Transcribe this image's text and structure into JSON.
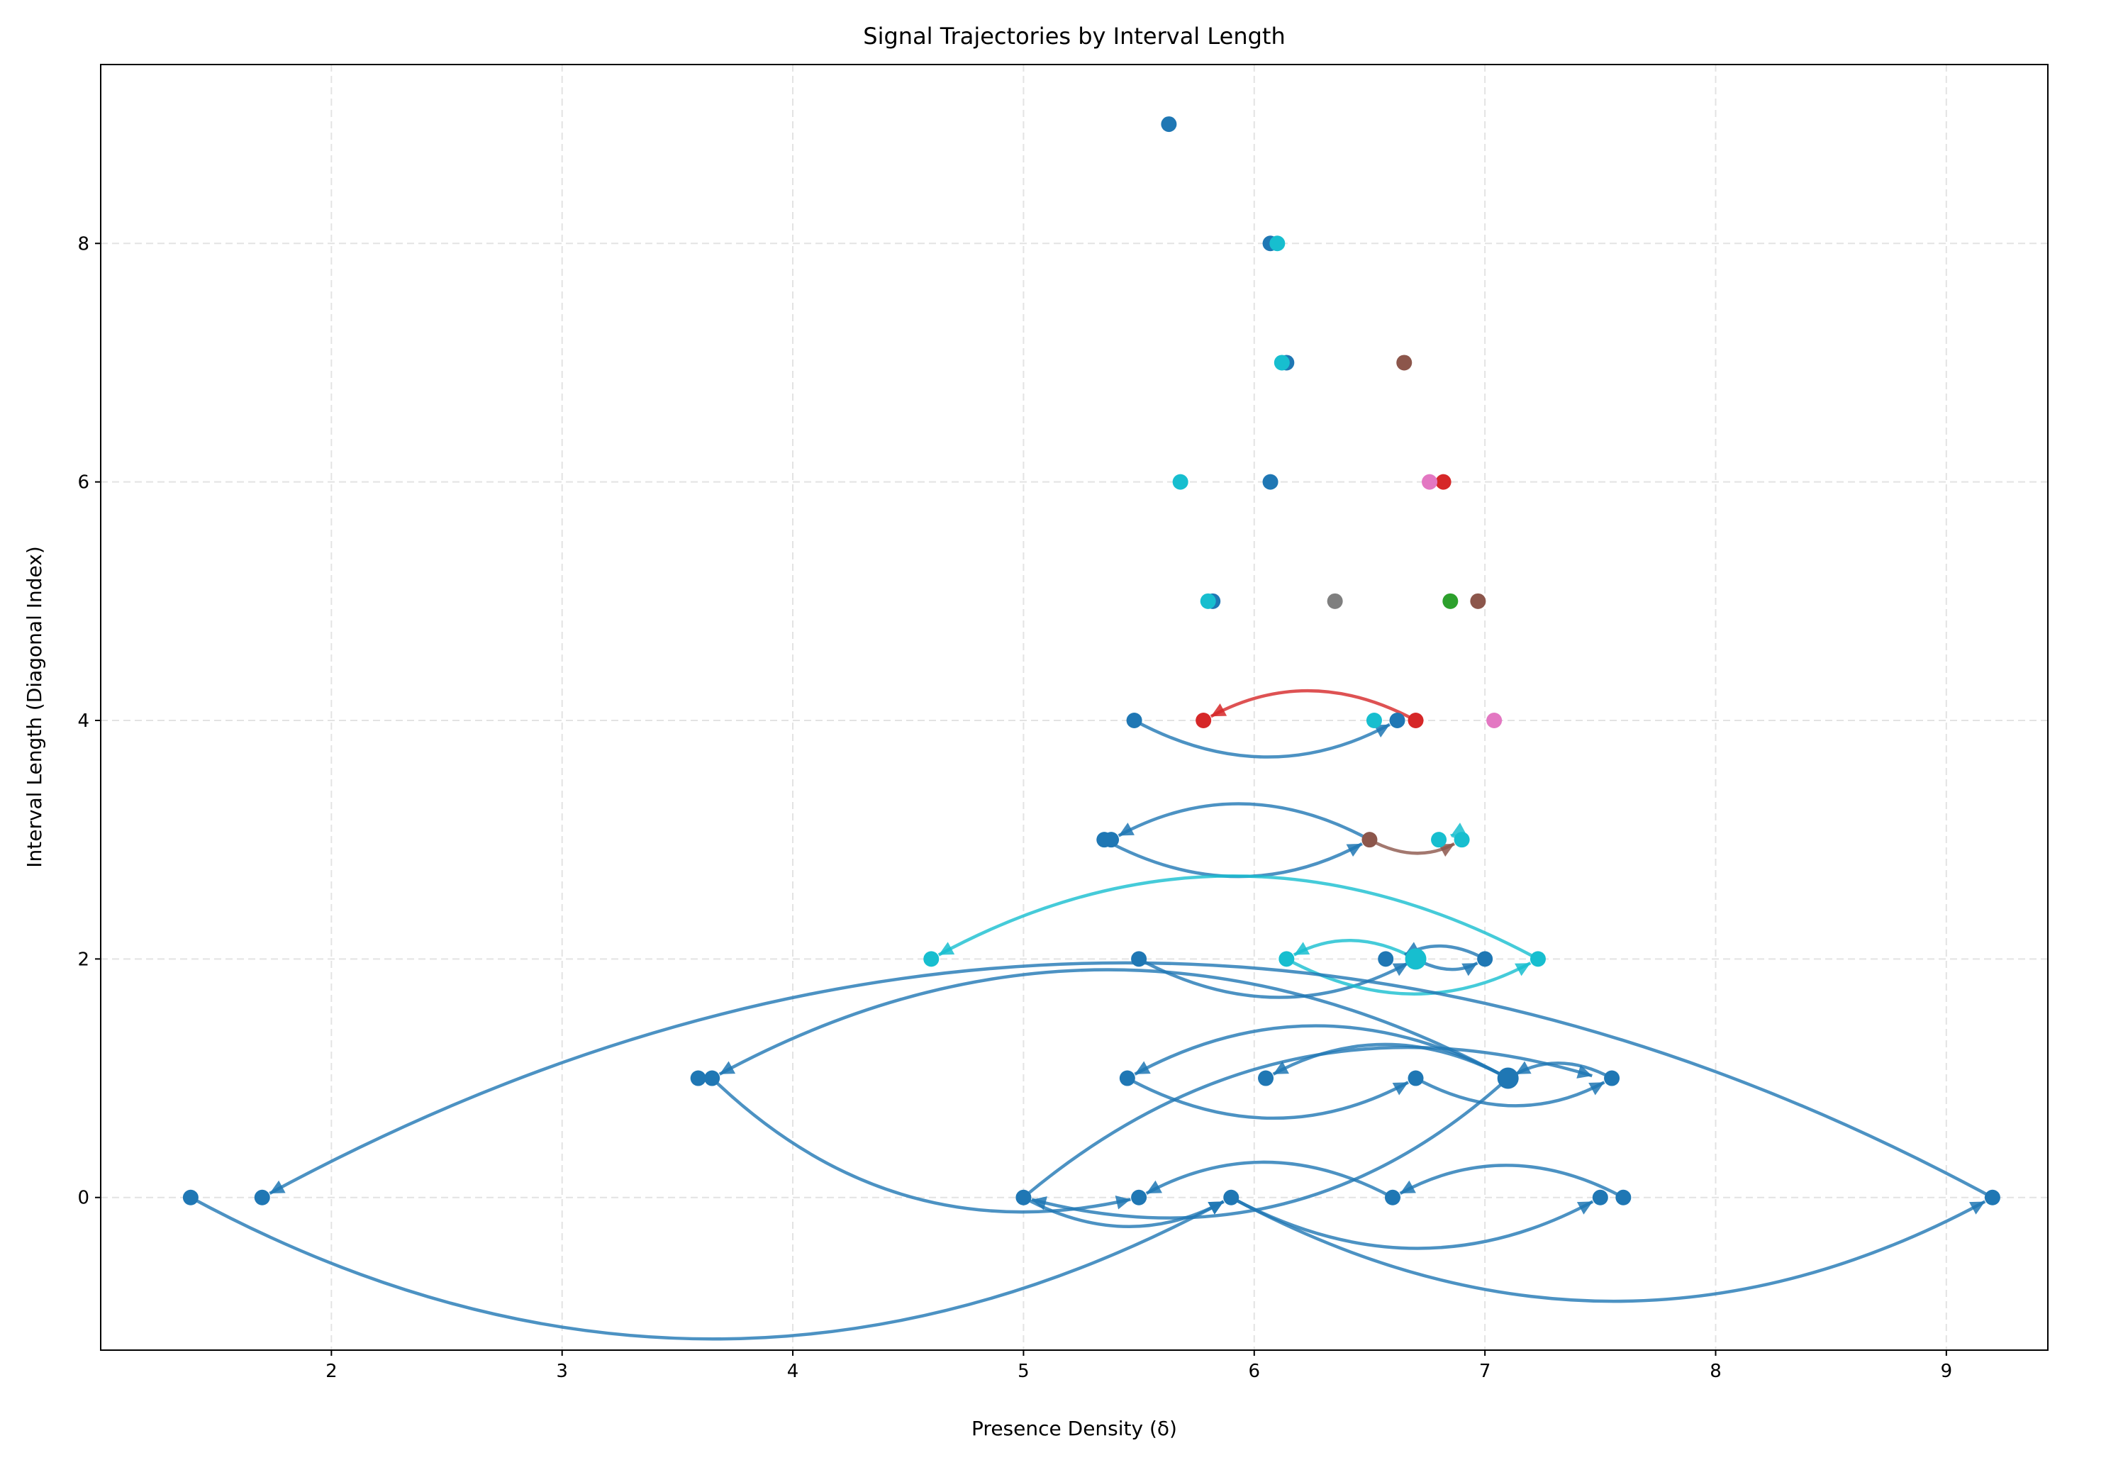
{
  "chart_data": {
    "type": "scatter",
    "title": "Signal Trajectories by Interval Length",
    "xlabel": "Presence Density (δ)",
    "ylabel": "Interval Length (Diagonal Index)",
    "xlim": [
      1.0,
      9.44
    ],
    "ylim": [
      -1.28,
      9.5
    ],
    "xticks": [
      2,
      3,
      4,
      5,
      6,
      7,
      8,
      9
    ],
    "yticks": [
      0,
      2,
      4,
      6,
      8
    ],
    "grid": true,
    "colors": {
      "blue": "#1f77b4",
      "cyan": "#17becf",
      "red": "#d62728",
      "brown": "#8c564b",
      "pink": "#e377c2",
      "gray": "#7f7f7f",
      "green": "#2ca02c"
    },
    "points": [
      {
        "x": 5.63,
        "y": 9,
        "c": "blue"
      },
      {
        "x": 6.07,
        "y": 8,
        "c": "blue"
      },
      {
        "x": 6.1,
        "y": 8,
        "c": "cyan"
      },
      {
        "x": 6.14,
        "y": 7,
        "c": "blue"
      },
      {
        "x": 6.12,
        "y": 7,
        "c": "cyan"
      },
      {
        "x": 6.65,
        "y": 7,
        "c": "brown"
      },
      {
        "x": 5.68,
        "y": 6,
        "c": "cyan"
      },
      {
        "x": 6.07,
        "y": 6,
        "c": "blue"
      },
      {
        "x": 6.82,
        "y": 6,
        "c": "red"
      },
      {
        "x": 6.76,
        "y": 6,
        "c": "pink"
      },
      {
        "x": 5.82,
        "y": 5,
        "c": "blue"
      },
      {
        "x": 5.8,
        "y": 5,
        "c": "cyan"
      },
      {
        "x": 6.35,
        "y": 5,
        "c": "gray"
      },
      {
        "x": 6.85,
        "y": 5,
        "c": "green"
      },
      {
        "x": 6.97,
        "y": 5,
        "c": "brown"
      },
      {
        "x": 5.48,
        "y": 4,
        "c": "blue"
      },
      {
        "x": 5.78,
        "y": 4,
        "c": "red"
      },
      {
        "x": 6.52,
        "y": 4,
        "c": "cyan"
      },
      {
        "x": 6.62,
        "y": 4,
        "c": "blue"
      },
      {
        "x": 6.7,
        "y": 4,
        "c": "red"
      },
      {
        "x": 7.04,
        "y": 4,
        "c": "pink"
      },
      {
        "x": 5.35,
        "y": 3,
        "c": "blue"
      },
      {
        "x": 5.38,
        "y": 3,
        "c": "blue"
      },
      {
        "x": 6.5,
        "y": 3,
        "c": "brown"
      },
      {
        "x": 6.8,
        "y": 3,
        "c": "cyan"
      },
      {
        "x": 6.9,
        "y": 3,
        "c": "cyan"
      },
      {
        "x": 4.6,
        "y": 2,
        "c": "cyan"
      },
      {
        "x": 5.5,
        "y": 2,
        "c": "blue"
      },
      {
        "x": 6.14,
        "y": 2,
        "c": "cyan"
      },
      {
        "x": 6.57,
        "y": 2,
        "c": "blue"
      },
      {
        "x": 6.7,
        "y": 2,
        "c": "cyan",
        "large": true
      },
      {
        "x": 7.0,
        "y": 2,
        "c": "blue"
      },
      {
        "x": 7.23,
        "y": 2,
        "c": "cyan"
      },
      {
        "x": 3.59,
        "y": 1,
        "c": "blue"
      },
      {
        "x": 3.65,
        "y": 1,
        "c": "blue"
      },
      {
        "x": 5.45,
        "y": 1,
        "c": "blue"
      },
      {
        "x": 6.05,
        "y": 1,
        "c": "blue"
      },
      {
        "x": 6.7,
        "y": 1,
        "c": "blue"
      },
      {
        "x": 7.1,
        "y": 1,
        "c": "blue",
        "large": true
      },
      {
        "x": 7.55,
        "y": 1,
        "c": "blue"
      },
      {
        "x": 1.39,
        "y": 0,
        "c": "blue"
      },
      {
        "x": 1.7,
        "y": 0,
        "c": "blue"
      },
      {
        "x": 5.0,
        "y": 0,
        "c": "blue"
      },
      {
        "x": 5.5,
        "y": 0,
        "c": "blue"
      },
      {
        "x": 5.9,
        "y": 0,
        "c": "blue"
      },
      {
        "x": 6.6,
        "y": 0,
        "c": "blue"
      },
      {
        "x": 7.5,
        "y": 0,
        "c": "blue"
      },
      {
        "x": 7.6,
        "y": 0,
        "c": "blue"
      },
      {
        "x": 9.2,
        "y": 0,
        "c": "blue"
      }
    ],
    "trajectories": [
      {
        "from": [
          5.48,
          4
        ],
        "to": [
          6.62,
          4
        ],
        "c": "blue",
        "curve": "below"
      },
      {
        "from": [
          6.7,
          4
        ],
        "to": [
          5.78,
          4
        ],
        "c": "red",
        "curve": "above"
      },
      {
        "from": [
          6.5,
          3
        ],
        "to": [
          5.38,
          3
        ],
        "c": "blue",
        "curve": "above"
      },
      {
        "from": [
          5.35,
          3
        ],
        "to": [
          6.5,
          3
        ],
        "c": "blue",
        "curve": "below"
      },
      {
        "from": [
          6.5,
          3
        ],
        "to": [
          6.9,
          3
        ],
        "c": "brown",
        "curve": "below"
      },
      {
        "from": [
          6.9,
          3
        ],
        "to": [
          6.82,
          3
        ],
        "c": "cyan",
        "curve": "above"
      },
      {
        "from": [
          7.23,
          2
        ],
        "to": [
          4.6,
          2
        ],
        "c": "cyan",
        "curve": "above"
      },
      {
        "from": [
          5.5,
          2
        ],
        "to": [
          6.7,
          2
        ],
        "c": "blue",
        "curve": "below"
      },
      {
        "from": [
          6.14,
          2
        ],
        "to": [
          7.23,
          2
        ],
        "c": "cyan",
        "curve": "below"
      },
      {
        "from": [
          6.7,
          2
        ],
        "to": [
          6.14,
          2
        ],
        "c": "cyan",
        "curve": "above"
      },
      {
        "from": [
          7.0,
          2
        ],
        "to": [
          6.62,
          2
        ],
        "c": "blue",
        "curve": "above"
      },
      {
        "from": [
          6.7,
          2
        ],
        "to": [
          7.0,
          2
        ],
        "c": "blue",
        "curve": "below"
      },
      {
        "from": [
          7.1,
          1
        ],
        "to": [
          3.65,
          1
        ],
        "c": "blue",
        "curve": "above"
      },
      {
        "from": [
          7.1,
          1
        ],
        "to": [
          5.45,
          1
        ],
        "c": "blue",
        "curve": "above"
      },
      {
        "from": [
          7.1,
          1
        ],
        "to": [
          6.05,
          1
        ],
        "c": "blue",
        "curve": "above"
      },
      {
        "from": [
          5.45,
          1
        ],
        "to": [
          6.7,
          1
        ],
        "c": "blue",
        "curve": "below"
      },
      {
        "from": [
          6.7,
          1
        ],
        "to": [
          7.55,
          1
        ],
        "c": "blue",
        "curve": "below"
      },
      {
        "from": [
          7.55,
          1
        ],
        "to": [
          7.1,
          1
        ],
        "c": "blue",
        "curve": "above"
      },
      {
        "from": [
          9.2,
          0
        ],
        "to": [
          1.7,
          0
        ],
        "c": "blue",
        "curve": "above"
      },
      {
        "from": [
          3.65,
          1
        ],
        "to": [
          5.5,
          0
        ],
        "c": "blue",
        "curve": "below"
      },
      {
        "from": [
          5.0,
          0
        ],
        "to": [
          7.5,
          1
        ],
        "c": "blue",
        "curve": "above"
      },
      {
        "from": [
          7.1,
          1
        ],
        "to": [
          5.0,
          0
        ],
        "c": "blue",
        "curve": "below"
      },
      {
        "from": [
          1.39,
          0
        ],
        "to": [
          5.9,
          0
        ],
        "c": "blue",
        "curve": "below"
      },
      {
        "from": [
          5.0,
          0
        ],
        "to": [
          5.9,
          0
        ],
        "c": "blue",
        "curve": "below"
      },
      {
        "from": [
          6.6,
          0
        ],
        "to": [
          5.5,
          0
        ],
        "c": "blue",
        "curve": "above"
      },
      {
        "from": [
          7.6,
          0
        ],
        "to": [
          6.6,
          0
        ],
        "c": "blue",
        "curve": "above"
      },
      {
        "from": [
          5.9,
          0
        ],
        "to": [
          7.5,
          0
        ],
        "c": "blue",
        "curve": "below"
      },
      {
        "from": [
          5.9,
          0
        ],
        "to": [
          9.2,
          0
        ],
        "c": "blue",
        "curve": "below"
      }
    ]
  }
}
